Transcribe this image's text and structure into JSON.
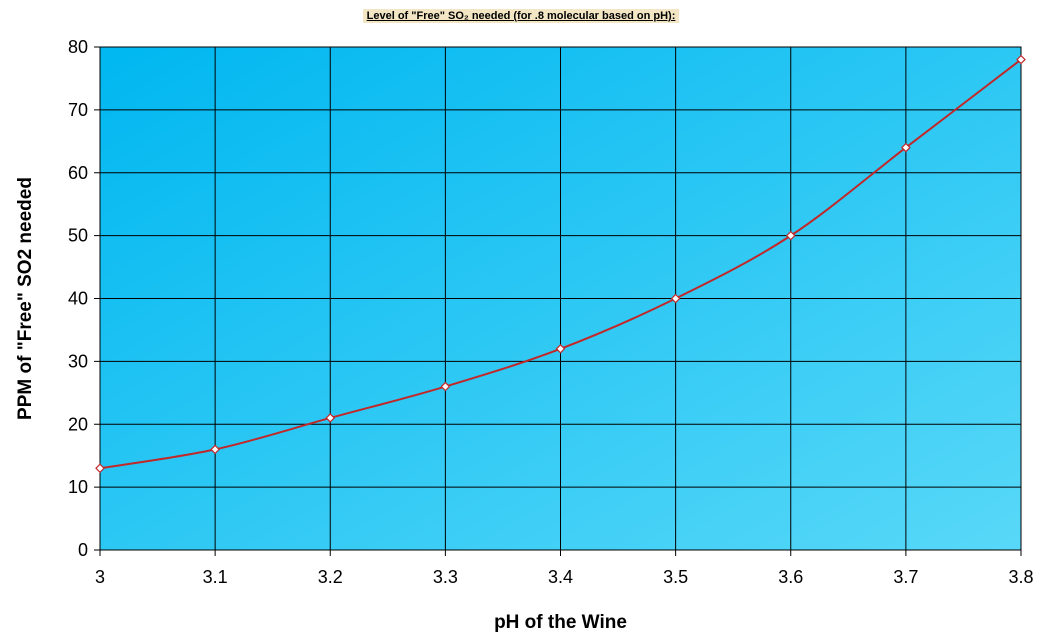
{
  "title": "Level of \"Free\" SO₂ needed (for .8 molecular based on pH):",
  "colors": {
    "plot_bg_top": "#00b7f0",
    "plot_bg_bottom": "#58d8f8",
    "grid": "#000000",
    "line": "#c0282a",
    "marker_fill": "#ffffff",
    "marker_stroke": "#c0282a",
    "title_bg": "#f2e6c4"
  },
  "chart_data": {
    "type": "line",
    "title": "Level of \"Free\" SO₂ needed (for .8 molecular based on pH):",
    "xlabel": "pH of the Wine",
    "ylabel": "PPM of \"Free\" SO2 needed",
    "x": [
      3,
      3.1,
      3.2,
      3.3,
      3.4,
      3.5,
      3.6,
      3.7,
      3.8
    ],
    "series": [
      {
        "values": [
          13,
          16,
          21,
          26,
          32,
          40,
          50,
          64,
          78
        ]
      }
    ],
    "x_ticks": [
      "3",
      "3.1",
      "3.2",
      "3.3",
      "3.4",
      "3.5",
      "3.6",
      "3.7",
      "3.8"
    ],
    "y_ticks": [
      "0",
      "10",
      "20",
      "30",
      "40",
      "50",
      "60",
      "70",
      "80"
    ],
    "xlim": [
      3,
      3.8
    ],
    "ylim": [
      0,
      80
    ],
    "grid": true,
    "legend": "none"
  }
}
